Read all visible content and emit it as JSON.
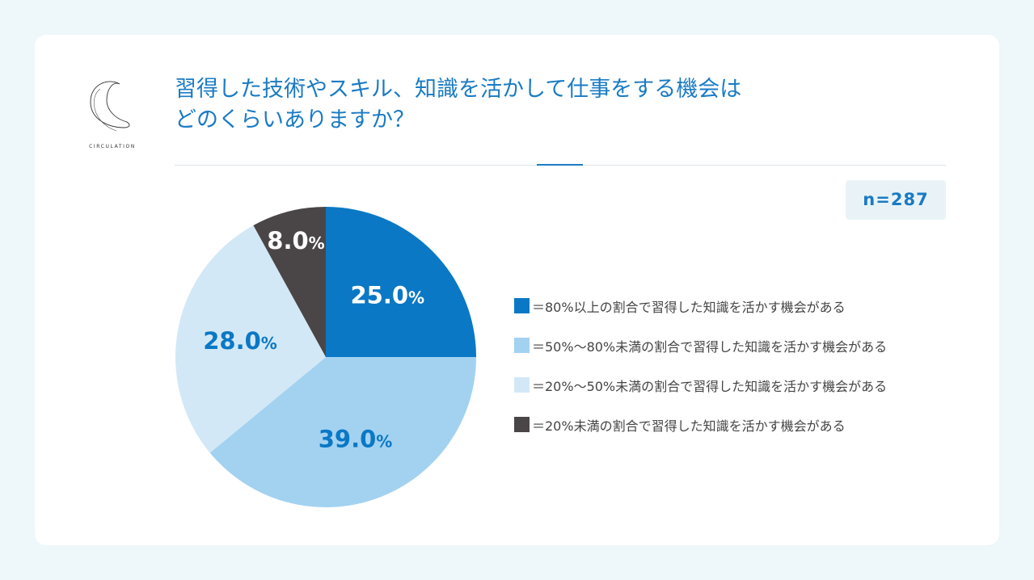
{
  "brand": {
    "name": "CIRCULATION"
  },
  "title": {
    "line1": "習得した技術やスキル、知識を活かして仕事をする機会は",
    "line2": "どのくらいありますか？"
  },
  "sample": {
    "label": "n=287"
  },
  "colors": {
    "accent": "#1a7bc4",
    "slice1": "#0a78c5",
    "slice2": "#a3d2f1",
    "slice3": "#d3e8f6",
    "slice4": "#4a4647"
  },
  "chart_data": {
    "type": "pie",
    "slices": [
      {
        "label": "＝80%以上の割合で習得した知識を活かす機会がある",
        "value": 25.0,
        "display": "25.0",
        "color": "#0a78c5",
        "text_color": "#ffffff"
      },
      {
        "label": "＝50%〜80%未満の割合で習得した知識を活かす機会がある",
        "value": 39.0,
        "display": "39.0",
        "color": "#a3d2f1",
        "text_color": "#0a78c5"
      },
      {
        "label": "＝20%〜50%未満の割合で習得した知識を活かす機会がある",
        "value": 28.0,
        "display": "28.0",
        "color": "#d3e8f6",
        "text_color": "#0a78c5"
      },
      {
        "label": "＝20%未満の割合で習得した知識を活かす機会がある",
        "value": 8.0,
        "display": "8.0",
        "color": "#4a4647",
        "text_color": "#ffffff"
      }
    ],
    "unit": "%",
    "legend_position": "right"
  }
}
